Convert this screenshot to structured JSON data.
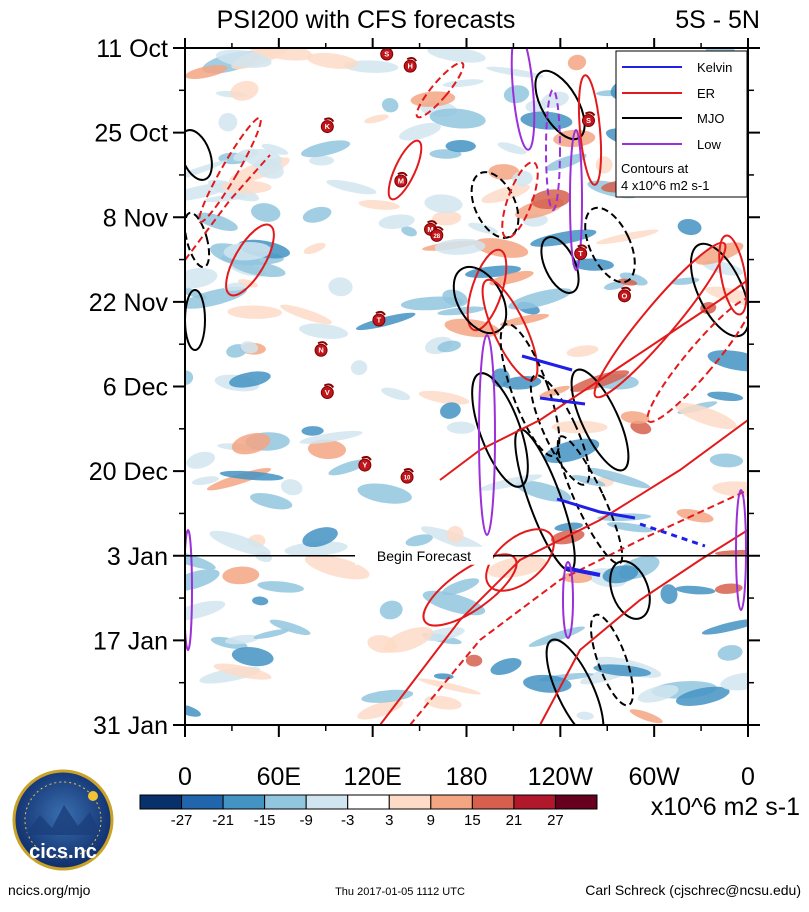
{
  "chart_data": {
    "type": "heatmap",
    "title": "PSI200 with CFS forecasts",
    "region": "5S - 5N",
    "x_ticks": [
      "0",
      "60E",
      "120E",
      "180",
      "120W",
      "60W",
      "0"
    ],
    "x_tick_lon": [
      0,
      60,
      120,
      180,
      240,
      300,
      360
    ],
    "y_ticks": [
      "11 Oct",
      "25 Oct",
      "8 Nov",
      "22 Nov",
      "6 Dec",
      "20 Dec",
      "3 Jan",
      "17 Jan",
      "31 Jan"
    ],
    "y_tick_day": [
      0,
      14,
      28,
      42,
      56,
      70,
      84,
      98,
      112
    ],
    "forecast_start_day": 84,
    "forecast_label": "Begin Forecast",
    "legend": {
      "placement": "top-right",
      "entries": [
        {
          "name": "Kelvin",
          "color": "#1f1fe6"
        },
        {
          "name": "ER",
          "color": "#e31a1c"
        },
        {
          "name": "MJO",
          "color": "#000000"
        },
        {
          "name": "Low",
          "color": "#9b30d9"
        }
      ],
      "note_line1": "Contours at",
      "note_line2": "4 x10^6 m2 s-1"
    },
    "colorbar": {
      "labels": [
        "-27",
        "-21",
        "-15",
        "-9",
        "-3",
        "3",
        "9",
        "15",
        "21",
        "27"
      ],
      "colors": [
        "#08306b",
        "#2166ac",
        "#4393c3",
        "#92c5de",
        "#d1e5f0",
        "#ffffff",
        "#fddbc7",
        "#f4a582",
        "#d6604d",
        "#b2182b",
        "#67001f"
      ],
      "units": "x10^6 m2 s-1"
    },
    "storms": [
      {
        "label": "S",
        "lon": 129,
        "day": 1
      },
      {
        "label": "H",
        "lon": 144,
        "day": 3
      },
      {
        "label": "K",
        "lon": 91,
        "day": 13
      },
      {
        "label": "M",
        "lon": 138,
        "day": 22
      },
      {
        "label": "M",
        "lon": 157,
        "day": 30
      },
      {
        "label": "28",
        "lon": 161,
        "day": 31
      },
      {
        "label": "T",
        "lon": 124,
        "day": 45
      },
      {
        "label": "N",
        "lon": 87,
        "day": 50
      },
      {
        "label": "V",
        "lon": 91,
        "day": 57
      },
      {
        "label": "Y",
        "lon": 115,
        "day": 69
      },
      {
        "label": "10",
        "lon": 142,
        "day": 71
      },
      {
        "label": "S",
        "lon": 258,
        "day": 12
      },
      {
        "label": "T",
        "lon": 253,
        "day": 34
      },
      {
        "label": "O",
        "lon": 281,
        "day": 41
      }
    ]
  },
  "footer": {
    "logo_text": "cics.nc",
    "left": "ncics.org/mjo",
    "center": "Thu 2017-01-05 1112 UTC",
    "right": "Carl Schreck (cjschrec@ncsu.edu)"
  }
}
